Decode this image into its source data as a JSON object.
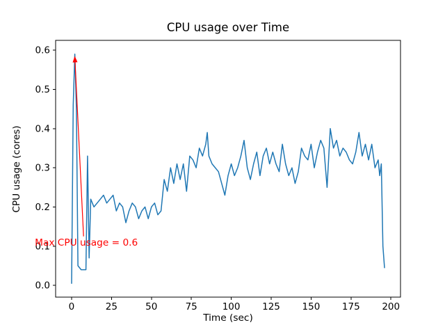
{
  "chart_data": {
    "type": "line",
    "title": "CPU usage over Time",
    "xlabel": "Time (sec)",
    "ylabel": "CPU usage (cores)",
    "xlim": [
      -10,
      206
    ],
    "ylim": [
      -0.03,
      0.625
    ],
    "xticks": [
      0,
      25,
      50,
      75,
      100,
      125,
      150,
      175,
      200
    ],
    "yticks": [
      0.0,
      0.1,
      0.2,
      0.3,
      0.4,
      0.5,
      0.6
    ],
    "grid": false,
    "legend": "none",
    "axes_color": "#000000",
    "series": [
      {
        "name": "CPU usage",
        "color": "#1f77b4",
        "x": [
          0,
          1,
          2,
          3,
          4,
          6,
          8,
          9,
          10,
          11,
          12,
          14,
          16,
          18,
          20,
          22,
          24,
          26,
          28,
          30,
          32,
          34,
          36,
          38,
          40,
          42,
          44,
          46,
          48,
          50,
          52,
          54,
          56,
          58,
          60,
          62,
          64,
          66,
          68,
          70,
          72,
          74,
          76,
          78,
          80,
          82,
          84,
          85,
          86,
          88,
          90,
          92,
          94,
          96,
          98,
          100,
          102,
          104,
          106,
          108,
          110,
          112,
          114,
          116,
          118,
          120,
          122,
          124,
          126,
          128,
          130,
          132,
          134,
          136,
          138,
          140,
          142,
          144,
          146,
          148,
          150,
          152,
          154,
          156,
          158,
          160,
          162,
          164,
          166,
          168,
          170,
          172,
          174,
          176,
          178,
          180,
          182,
          184,
          186,
          188,
          190,
          192,
          193,
          194,
          195,
          196
        ],
        "y": [
          0.005,
          0.46,
          0.59,
          0.45,
          0.05,
          0.04,
          0.04,
          0.04,
          0.33,
          0.07,
          0.22,
          0.2,
          0.21,
          0.22,
          0.23,
          0.21,
          0.22,
          0.23,
          0.19,
          0.21,
          0.2,
          0.16,
          0.19,
          0.21,
          0.2,
          0.17,
          0.19,
          0.2,
          0.17,
          0.2,
          0.21,
          0.18,
          0.19,
          0.27,
          0.24,
          0.3,
          0.26,
          0.31,
          0.27,
          0.31,
          0.24,
          0.33,
          0.32,
          0.3,
          0.35,
          0.33,
          0.36,
          0.39,
          0.33,
          0.31,
          0.3,
          0.29,
          0.26,
          0.23,
          0.28,
          0.31,
          0.28,
          0.3,
          0.33,
          0.37,
          0.3,
          0.27,
          0.31,
          0.34,
          0.28,
          0.33,
          0.35,
          0.31,
          0.34,
          0.31,
          0.29,
          0.36,
          0.31,
          0.28,
          0.3,
          0.26,
          0.29,
          0.35,
          0.33,
          0.32,
          0.36,
          0.3,
          0.34,
          0.37,
          0.35,
          0.25,
          0.4,
          0.35,
          0.37,
          0.33,
          0.35,
          0.34,
          0.32,
          0.31,
          0.34,
          0.39,
          0.33,
          0.36,
          0.32,
          0.36,
          0.3,
          0.32,
          0.28,
          0.31,
          0.1,
          0.045
        ]
      }
    ],
    "annotation": {
      "text": "Max CPU usage = 0.6",
      "color": "#ff0000",
      "text_xy": [
        -23,
        0.108
      ],
      "arrow_tail_xy": [
        7.5,
        0.125
      ],
      "arrow_tip_xy": [
        2,
        0.585
      ]
    }
  }
}
